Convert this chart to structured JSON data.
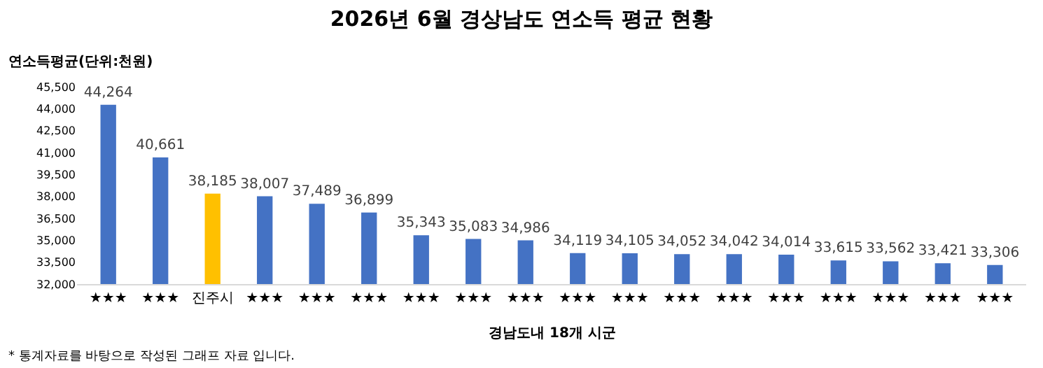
{
  "chart_data": {
    "type": "bar",
    "title": "2026년 6월 경상남도 연소득 평균 현황",
    "ylabel": "연소득평균(단위:천원)",
    "xlabel": "경남도내 18개 시군",
    "categories": [
      "★★★",
      "★★★",
      "진주시",
      "★★★",
      "★★★",
      "★★★",
      "★★★",
      "★★★",
      "★★★",
      "★★★",
      "★★★",
      "★★★",
      "★★★",
      "★★★",
      "★★★",
      "★★★",
      "★★★",
      "★★★"
    ],
    "values": [
      44264,
      40661,
      38185,
      38007,
      37489,
      36899,
      35343,
      35083,
      34986,
      34119,
      34105,
      34052,
      34042,
      34014,
      33615,
      33562,
      33421,
      33306
    ],
    "value_labels": [
      "44,264",
      "40,661",
      "38,185",
      "38,007",
      "37,489",
      "36,899",
      "35,343",
      "35,083",
      "34,986",
      "34,119",
      "34,105",
      "34,052",
      "34,042",
      "34,014",
      "33,615",
      "33,562",
      "33,421",
      "33,306"
    ],
    "colors": [
      "#4472c4",
      "#4472c4",
      "#ffc000",
      "#4472c4",
      "#4472c4",
      "#4472c4",
      "#4472c4",
      "#4472c4",
      "#4472c4",
      "#4472c4",
      "#4472c4",
      "#4472c4",
      "#4472c4",
      "#4472c4",
      "#4472c4",
      "#4472c4",
      "#4472c4",
      "#4472c4"
    ],
    "ylim": [
      32000,
      45500
    ],
    "yticks": [
      {
        "value": 32000,
        "label": "32,000"
      },
      {
        "value": 33500,
        "label": "33,500"
      },
      {
        "value": 35000,
        "label": "35,000"
      },
      {
        "value": 36500,
        "label": "36,500"
      },
      {
        "value": 38000,
        "label": "38,000"
      },
      {
        "value": 39500,
        "label": "39,500"
      },
      {
        "value": 41000,
        "label": "41,000"
      },
      {
        "value": 42500,
        "label": "42,500"
      },
      {
        "value": 44000,
        "label": "44,000"
      },
      {
        "value": 45500,
        "label": "45,500"
      }
    ],
    "grid": false,
    "legend": false,
    "annotations": [
      "* 통계자료를 바탕으로 작성된 그래프 자료 입니다."
    ]
  }
}
